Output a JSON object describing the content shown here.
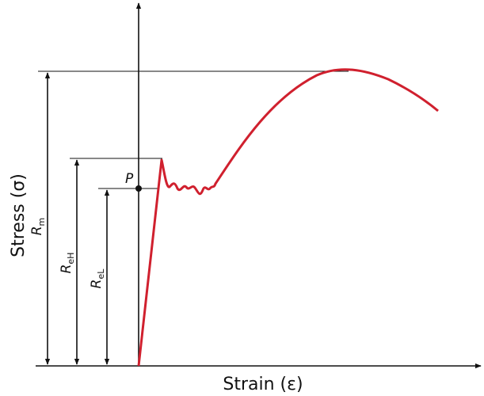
{
  "axes": {
    "y_label": "Stress (σ)",
    "x_label": "Strain (ε)"
  },
  "labels": {
    "rm": {
      "main": "R",
      "sub": "m"
    },
    "reh": {
      "main": "R",
      "sub": "eH"
    },
    "rel": {
      "main": "R",
      "sub": "eL"
    },
    "point": "P"
  }
}
